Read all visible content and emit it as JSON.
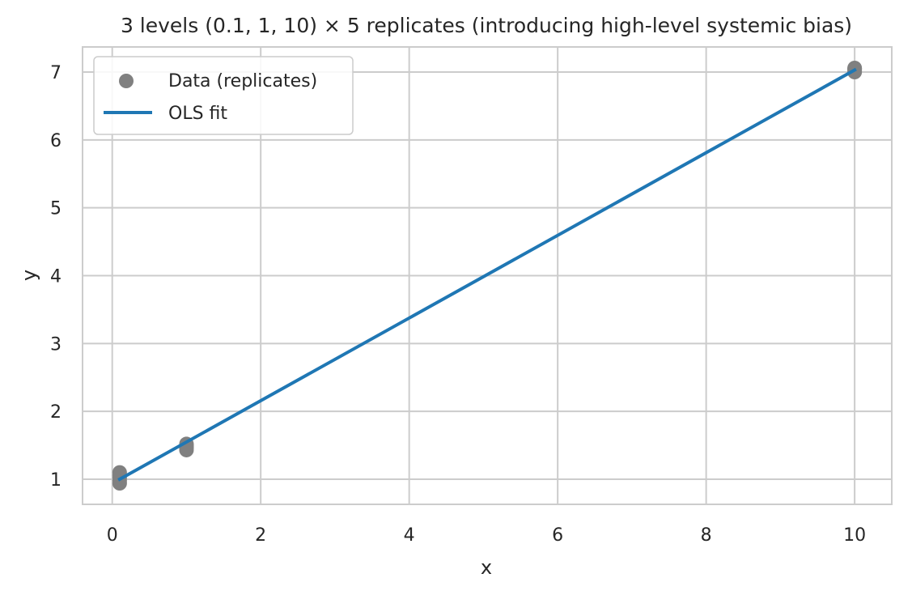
{
  "chart_data": {
    "type": "scatter",
    "title": "3 levels (0.1, 1, 10) × 5 replicates  (introducing high-level systemic bias)",
    "xlabel": "x",
    "ylabel": "y",
    "xlim": [
      -0.4,
      10.5
    ],
    "ylim": [
      0.63,
      7.37
    ],
    "xticks": [
      0,
      2,
      4,
      6,
      8,
      10
    ],
    "yticks": [
      1,
      2,
      3,
      4,
      5,
      6,
      7
    ],
    "grid": true,
    "legend_position": "top-left",
    "series": [
      {
        "name": "Data (replicates)",
        "kind": "scatter",
        "color": "#808080",
        "points": [
          {
            "x": 0.1,
            "y": 0.94
          },
          {
            "x": 0.1,
            "y": 0.98
          },
          {
            "x": 0.1,
            "y": 1.02
          },
          {
            "x": 0.1,
            "y": 1.06
          },
          {
            "x": 0.1,
            "y": 1.1
          },
          {
            "x": 1,
            "y": 1.43
          },
          {
            "x": 1,
            "y": 1.46
          },
          {
            "x": 1,
            "y": 1.48
          },
          {
            "x": 1,
            "y": 1.5
          },
          {
            "x": 1,
            "y": 1.52
          },
          {
            "x": 10,
            "y": 7.0
          },
          {
            "x": 10,
            "y": 7.02
          },
          {
            "x": 10,
            "y": 7.04
          },
          {
            "x": 10,
            "y": 7.05
          },
          {
            "x": 10,
            "y": 7.06
          }
        ]
      },
      {
        "name": "OLS fit",
        "kind": "line",
        "color": "#1f77b4",
        "points": [
          {
            "x": 0.1,
            "y": 1.0
          },
          {
            "x": 10,
            "y": 7.03
          }
        ]
      }
    ]
  }
}
